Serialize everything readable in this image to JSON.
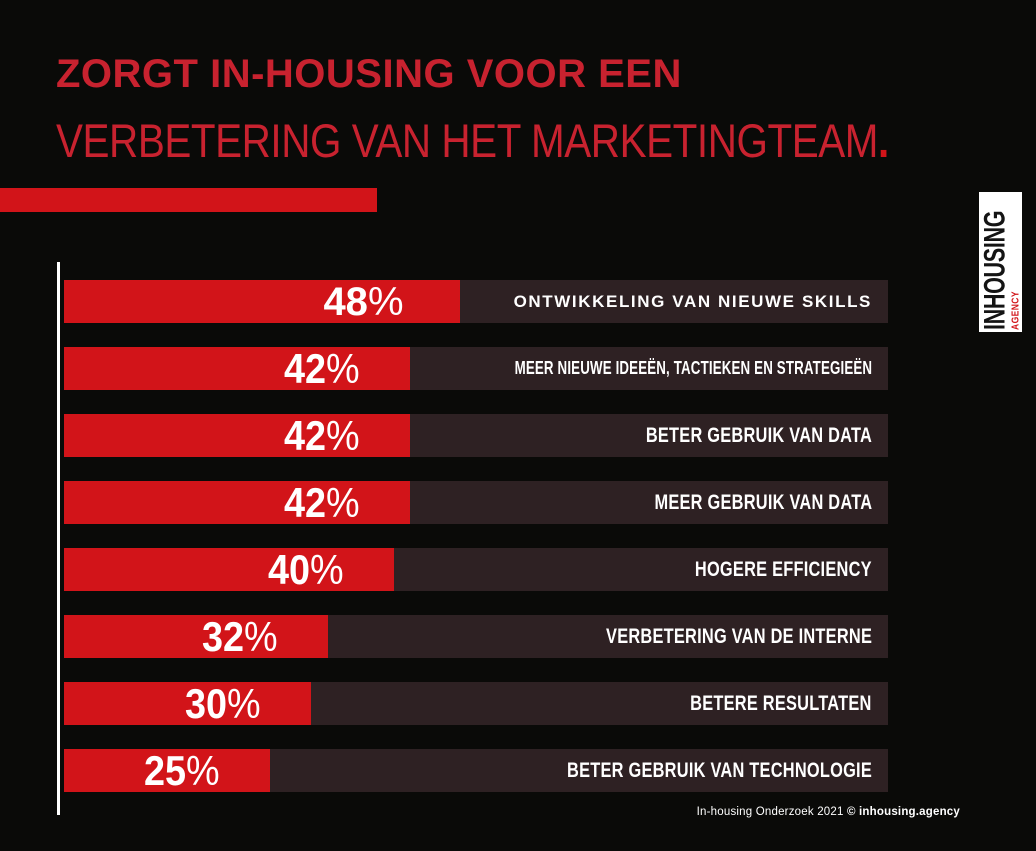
{
  "page": {
    "background": "#0a0a08"
  },
  "header": {
    "title_line1": "ZORGT IN-HOUSING VOOR EEN",
    "title_line2": "VERBETERING VAN HET MARKETINGTEAM",
    "title_period": ".",
    "title_color": "#c8222f"
  },
  "logo": {
    "name": "INHOUSING",
    "sub": "AGENCY",
    "box_color": "#ffffff",
    "name_color": "#141414",
    "sub_color": "#d21419"
  },
  "chart_data": {
    "type": "bar",
    "orientation": "horizontal",
    "title": "ZORGT IN-HOUSING VOOR EEN VERBETERING VAN HET MARKETINGTEAM.",
    "unit": "%",
    "value_range": [
      0,
      100
    ],
    "bar_color": "#d21419",
    "track_color": "#2e2123",
    "grid": false,
    "legend": false,
    "categories": [
      "ONTWIKKELING VAN NIEUWE SKILLS",
      "MEER NIEUWE IDEEËN, TACTIEKEN EN STRATEGIEËN",
      "BETER GEBRUIK VAN DATA",
      "MEER GEBRUIK VAN DATA",
      "HOGERE EFFICIENCY",
      "VERBETERING VAN DE INTERNE",
      "BETERE RESULTATEN",
      "BETER GEBRUIK VAN TECHNOLOGIE"
    ],
    "values": [
      48,
      42,
      42,
      42,
      40,
      32,
      30,
      25
    ],
    "rows": [
      {
        "value": "48",
        "unit": "%",
        "pct": 48,
        "label": "ONTWIKKELING VAN NIEUWE SKILLS"
      },
      {
        "value": "42",
        "unit": "%",
        "pct": 42,
        "label": "MEER NIEUWE IDEEËN, TACTIEKEN EN STRATEGIEËN"
      },
      {
        "value": "42",
        "unit": "%",
        "pct": 42,
        "label": "BETER GEBRUIK VAN DATA"
      },
      {
        "value": "42",
        "unit": "%",
        "pct": 42,
        "label": "MEER GEBRUIK VAN DATA"
      },
      {
        "value": "40",
        "unit": "%",
        "pct": 40,
        "label": "HOGERE EFFICIENCY"
      },
      {
        "value": "32",
        "unit": "%",
        "pct": 32,
        "label": "VERBETERING VAN DE INTERNE"
      },
      {
        "value": "30",
        "unit": "%",
        "pct": 30,
        "label": "BETERE RESULTATEN"
      },
      {
        "value": "25",
        "unit": "%",
        "pct": 25,
        "label": "BETER GEBRUIK VAN TECHNOLOGIE"
      }
    ]
  },
  "footer": {
    "text_regular": "In-housing Onderzoek 2021 ",
    "text_bold": "© inhousing.agency"
  }
}
